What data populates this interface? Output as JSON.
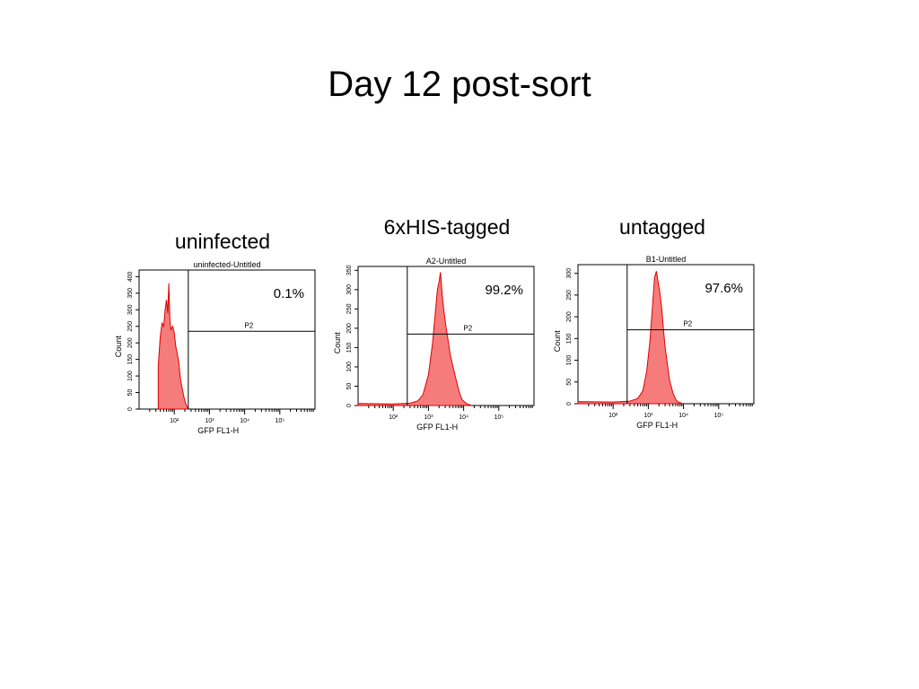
{
  "slide": {
    "title": "Day 12 post-sort"
  },
  "chart_data": [
    {
      "type": "area",
      "group_label": "uninfected",
      "title": "uninfected-Untitled",
      "xlabel": "GFP FL1-H",
      "ylabel": "Count",
      "x_scale": "log",
      "xlim": [
        10,
        1000000
      ],
      "ylim": [
        0,
        420
      ],
      "yticks": [
        0,
        50,
        100,
        150,
        200,
        250,
        300,
        350,
        400
      ],
      "xticks": [
        100,
        1000,
        10000,
        100000
      ],
      "xtick_labels": [
        "10²",
        "10³",
        "10⁴",
        "10⁵"
      ],
      "gate": {
        "name": "P2",
        "x_threshold": 250,
        "count_threshold": 235
      },
      "percent_label": "0.1%",
      "x": [
        35,
        40,
        45,
        50,
        55,
        60,
        65,
        70,
        75,
        80,
        90,
        100,
        110,
        120,
        135,
        150,
        170,
        190,
        210,
        230,
        250
      ],
      "counts": [
        130,
        220,
        260,
        250,
        300,
        330,
        290,
        380,
        270,
        240,
        250,
        230,
        190,
        170,
        140,
        90,
        60,
        35,
        18,
        8,
        2
      ],
      "color": "#f56565"
    },
    {
      "type": "area",
      "group_label": "6xHIS-tagged",
      "title": "A2-Untitled",
      "xlabel": "GFP FL1-H",
      "ylabel": "Count",
      "x_scale": "log",
      "xlim": [
        10,
        1000000
      ],
      "ylim": [
        0,
        360
      ],
      "yticks": [
        0,
        50,
        100,
        150,
        200,
        250,
        300,
        350
      ],
      "xticks": [
        100,
        1000,
        10000,
        100000
      ],
      "xtick_labels": [
        "10²",
        "10³",
        "10⁴",
        "10⁵"
      ],
      "gate": {
        "name": "P2",
        "x_threshold": 250,
        "count_threshold": 185
      },
      "percent_label": "99.2%",
      "x": [
        10,
        100,
        300,
        500,
        700,
        1000,
        1300,
        1600,
        1800,
        2000,
        2200,
        2500,
        2800,
        3200,
        3600,
        4200,
        5000,
        6000,
        7500,
        9000,
        12000,
        15000
      ],
      "counts": [
        5,
        4,
        6,
        12,
        28,
        80,
        160,
        250,
        300,
        320,
        345,
        280,
        240,
        200,
        170,
        130,
        100,
        70,
        35,
        15,
        5,
        2
      ],
      "color": "#f56565"
    },
    {
      "type": "area",
      "group_label": "untagged",
      "title": "B1-Untitled",
      "xlabel": "GFP FL1-H",
      "ylabel": "Count",
      "x_scale": "log",
      "xlim": [
        10,
        1000000
      ],
      "ylim": [
        0,
        320
      ],
      "yticks": [
        0,
        50,
        100,
        150,
        200,
        250,
        300
      ],
      "xticks": [
        100,
        1000,
        10000,
        100000
      ],
      "xtick_labels": [
        "10²",
        "10³",
        "10⁴",
        "10⁵"
      ],
      "gate": {
        "name": "P2",
        "x_threshold": 250,
        "count_threshold": 170
      },
      "percent_label": "97.6%",
      "x": [
        10,
        100,
        300,
        500,
        700,
        900,
        1100,
        1300,
        1500,
        1700,
        1900,
        2100,
        2400,
        2700,
        3000,
        3500,
        4000,
        5000,
        6000,
        7000,
        8500
      ],
      "counts": [
        5,
        4,
        6,
        12,
        30,
        75,
        140,
        220,
        290,
        305,
        280,
        260,
        220,
        170,
        130,
        90,
        55,
        25,
        10,
        4,
        2
      ],
      "color": "#f56565"
    }
  ]
}
